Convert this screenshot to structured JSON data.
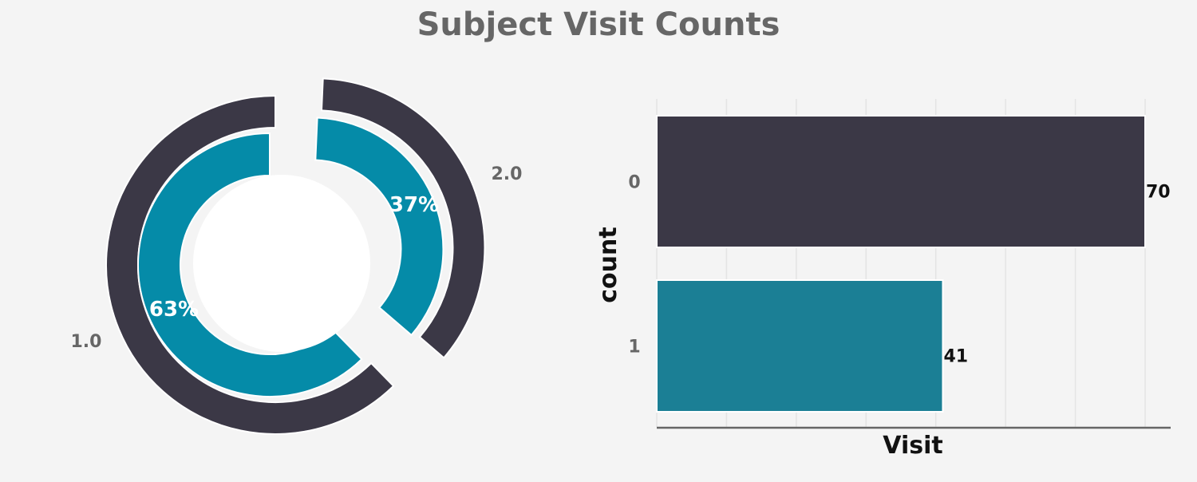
{
  "title": "Subject Visit Counts",
  "chart_data": [
    {
      "type": "pie",
      "variant": "nested-donut",
      "labels": [
        "1.0",
        "2.0"
      ],
      "values": [
        63,
        37
      ],
      "autopct": [
        "63%",
        "37%"
      ],
      "colors": {
        "outer": "#3b3846",
        "inner": "#058ba8",
        "center": "#ffffff"
      }
    },
    {
      "type": "bar",
      "orientation": "horizontal",
      "categories": [
        "0",
        "1"
      ],
      "values": [
        70,
        41
      ],
      "data_labels": [
        "70",
        "41"
      ],
      "xlabel": "Visit",
      "ylabel": "count",
      "xlim": [
        0,
        70
      ],
      "grid": true,
      "colors": [
        "#3b3846",
        "#1b7f95"
      ]
    }
  ]
}
